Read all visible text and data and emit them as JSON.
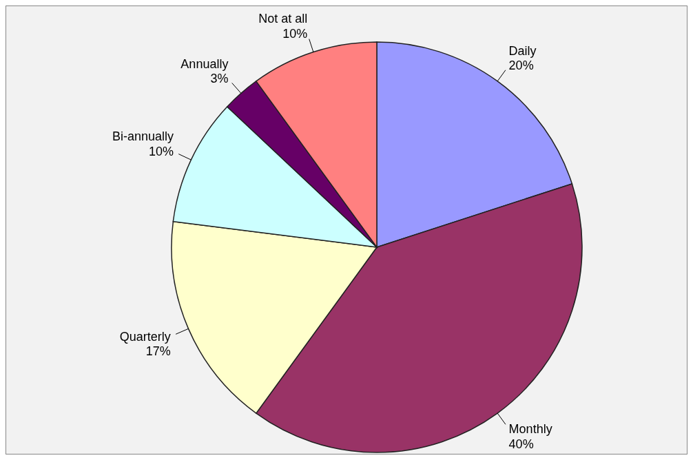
{
  "chart_data": {
    "type": "pie",
    "categories": [
      "Daily",
      "Monthly",
      "Quarterly",
      "Bi-annually",
      "Annually",
      "Not at all"
    ],
    "values": [
      20,
      40,
      17,
      10,
      3,
      10
    ],
    "value_labels": [
      "20%",
      "40%",
      "17%",
      "10%",
      "3%",
      "10%"
    ],
    "colors": [
      "#9999ff",
      "#993366",
      "#ffffcc",
      "#ccffff",
      "#660066",
      "#ff8080"
    ],
    "legend": false
  }
}
